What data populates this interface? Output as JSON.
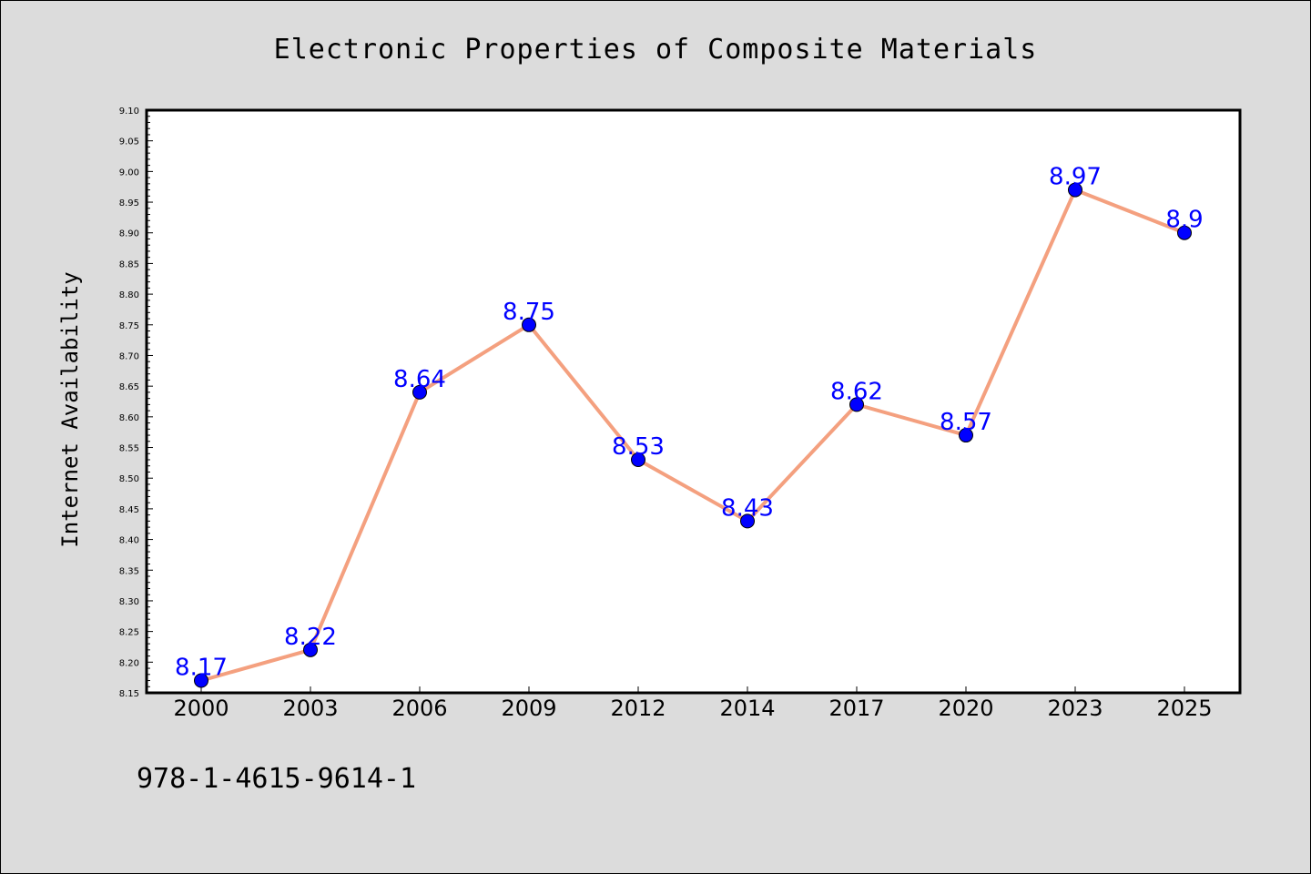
{
  "chart_data": {
    "type": "line",
    "title": "Electronic Properties of Composite Materials",
    "xlabel": "",
    "ylabel": "Internet Availability",
    "categories": [
      "2000",
      "2003",
      "2006",
      "2009",
      "2012",
      "2014",
      "2017",
      "2020",
      "2023",
      "2025"
    ],
    "series": [
      {
        "values": [
          8.17,
          8.22,
          8.64,
          8.75,
          8.53,
          8.43,
          8.62,
          8.57,
          8.97,
          8.9
        ]
      }
    ],
    "data_labels": [
      "8.17",
      "8.22",
      "8.64",
      "8.75",
      "8.53",
      "8.43",
      "8.62",
      "8.57",
      "8.97",
      "8.9"
    ],
    "ylim": [
      8.15,
      9.1
    ],
    "yticks": [
      "8.15",
      "8.20",
      "8.25",
      "8.30",
      "8.35",
      "8.40",
      "8.45",
      "8.50",
      "8.55",
      "8.60",
      "8.65",
      "8.70",
      "8.75",
      "8.80",
      "8.85",
      "8.90",
      "8.95",
      "9.00",
      "9.05",
      "9.10"
    ],
    "grid": false,
    "line_color": "#f4a07f",
    "marker_color": "#0000ff",
    "label_color": "#0000ff"
  },
  "footer": {
    "isbn": "978-1-4615-9614-1"
  }
}
